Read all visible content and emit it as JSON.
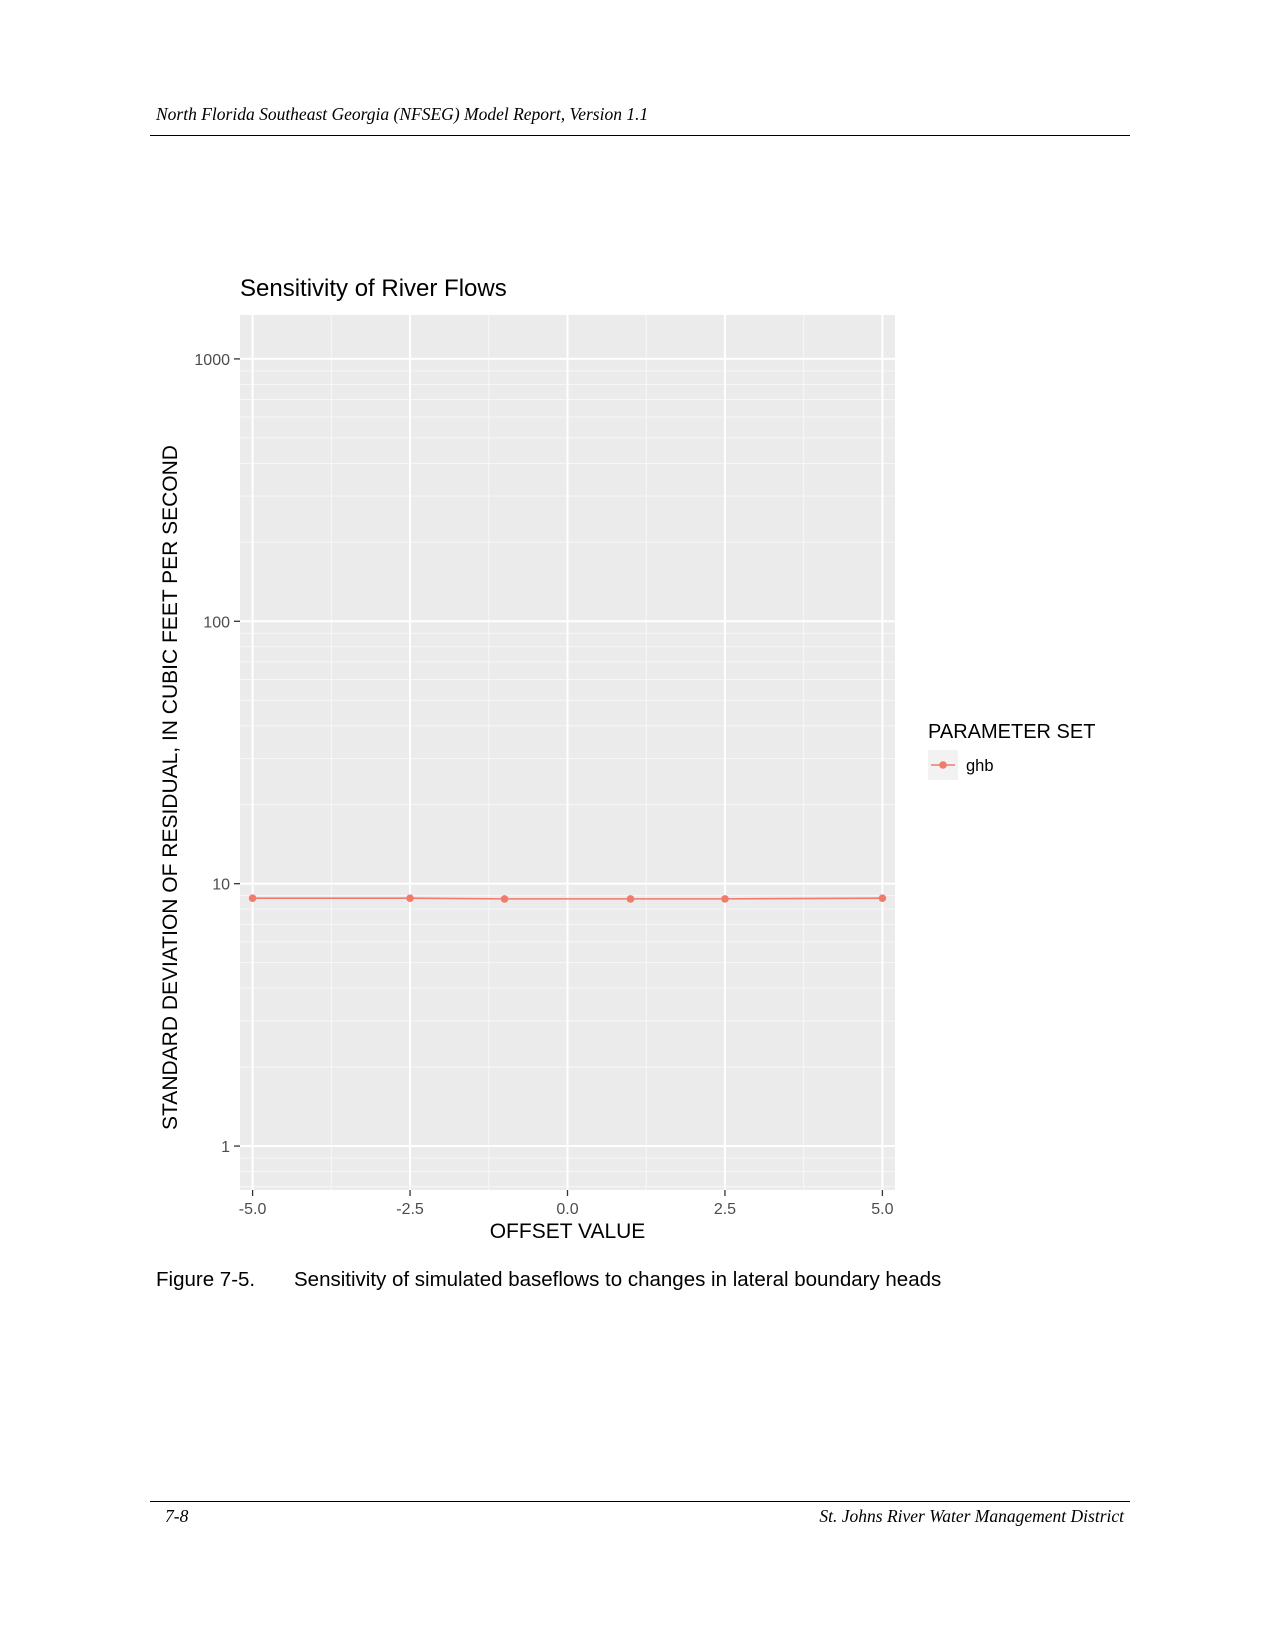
{
  "document": {
    "running_header": "North Florida Southeast Georgia (NFSEG) Model Report, Version 1.1",
    "caption_number": "Figure 7-5.",
    "caption_text": "Sensitivity of simulated baseflows to changes in lateral boundary heads",
    "footer_page": "7-8",
    "footer_org": "St. Johns River Water Management District"
  },
  "chart_data": {
    "type": "line",
    "title": "Sensitivity of River Flows",
    "xlabel": "OFFSET VALUE",
    "ylabel": "STANDARD DEVIATION OF RESIDUAL, IN CUBIC FEET PER SECOND",
    "xlim": [
      -5.2,
      5.2
    ],
    "ylim": [
      0.68,
      1470
    ],
    "y_scale": "log",
    "x_ticks": [
      -5.0,
      -2.5,
      0.0,
      2.5,
      5.0
    ],
    "x_tick_labels": [
      "-5.0",
      "-2.5",
      "0.0",
      "2.5",
      "5.0"
    ],
    "y_ticks": [
      1,
      10,
      100,
      1000
    ],
    "y_tick_labels": [
      "1",
      "10",
      "100",
      "1000"
    ],
    "grid": true,
    "legend": {
      "title": "PARAMETER SET",
      "position": "right"
    },
    "series": [
      {
        "name": "ghb",
        "color": "#f07b6c",
        "x": [
          -5.0,
          -2.5,
          -1.0,
          1.0,
          2.5,
          5.0
        ],
        "y": [
          8.8,
          8.8,
          8.75,
          8.75,
          8.75,
          8.8
        ]
      }
    ]
  }
}
